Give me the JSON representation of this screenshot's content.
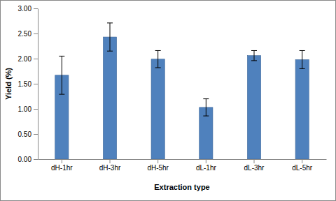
{
  "chart_data": {
    "type": "bar",
    "x_label": "Extraction type",
    "y_label": "Yield (%)",
    "categories": [
      "dH-1hr",
      "dH-3hr",
      "dH-5hr",
      "dL-1hr",
      "dL-3hr",
      "dL-5hr"
    ],
    "values": [
      1.67,
      2.43,
      1.99,
      1.03,
      2.06,
      1.98
    ],
    "errors": [
      0.38,
      0.28,
      0.17,
      0.17,
      0.1,
      0.18
    ],
    "color": "#4f81bd",
    "ylim": [
      0,
      3
    ],
    "yticks": [
      {
        "value": 0,
        "label": "0.00"
      },
      {
        "value": 0.5,
        "label": "0.50"
      },
      {
        "value": 1,
        "label": "1.00"
      },
      {
        "value": 1.5,
        "label": "1.50"
      },
      {
        "value": 2,
        "label": "2.00"
      },
      {
        "value": 2.5,
        "label": "2.50"
      },
      {
        "value": 3,
        "label": "3.00"
      }
    ],
    "grid": false
  }
}
